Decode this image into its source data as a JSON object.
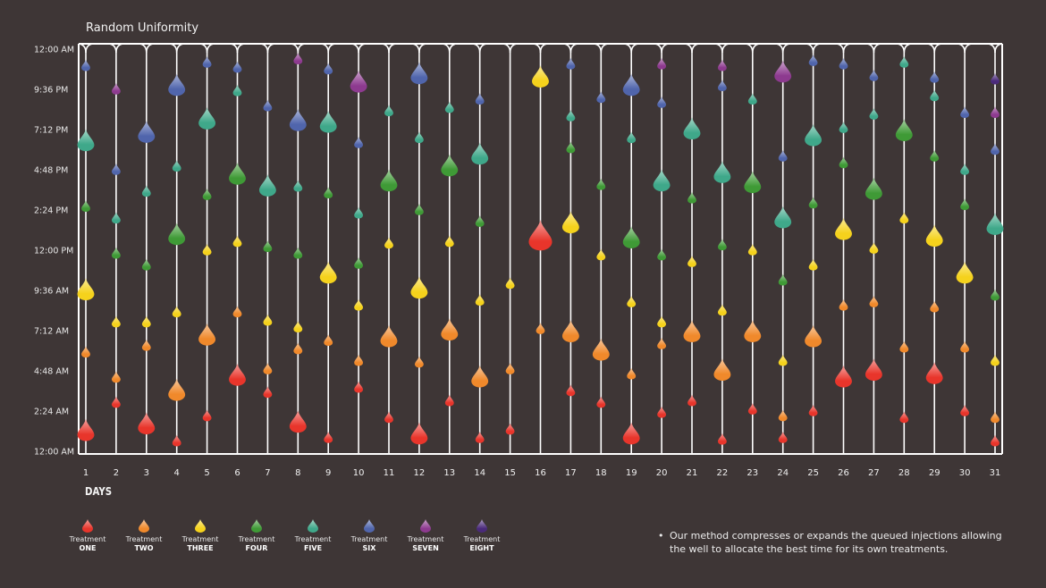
{
  "colors": {
    "background": "#3e3636",
    "frame": "#ffffff",
    "treatments": [
      "#e8352b",
      "#f0892b",
      "#f5d21c",
      "#3f9a36",
      "#3fa88a",
      "#5065ac",
      "#8d3a8f",
      "#4a2a7a"
    ]
  },
  "chart_data": {
    "type": "scatter",
    "title": "Random Uniformity",
    "xlabel": "DAYS",
    "ylabel": "",
    "x_ticks": [
      "1",
      "2",
      "3",
      "4",
      "5",
      "6",
      "7",
      "8",
      "9",
      "10",
      "11",
      "12",
      "13",
      "14",
      "15",
      "16",
      "17",
      "18",
      "19",
      "20",
      "21",
      "22",
      "23",
      "24",
      "25",
      "26",
      "27",
      "28",
      "29",
      "30",
      "31"
    ],
    "y_ticks": [
      "12:00 AM",
      "2:24 AM",
      "4:48 AM",
      "7:12 AM",
      "9:36 AM",
      "12:00 PM",
      "2:24 PM",
      "4:48 PM",
      "7:12 PM",
      "9:36 PM",
      "12:00 AM"
    ],
    "y_unit": "hours since midnight",
    "ylim": [
      0,
      24
    ],
    "size_meaning": "drop size indicates injection volume (1 = small, 3 = large)",
    "series": [
      {
        "name": "Treatment ONE",
        "points": [
          [
            1,
            1.2,
            3
          ],
          [
            2,
            2.9,
            1
          ],
          [
            3,
            1.6,
            3
          ],
          [
            4,
            0.6,
            1
          ],
          [
            5,
            2.1,
            1
          ],
          [
            6,
            4.5,
            3
          ],
          [
            7,
            3.5,
            1
          ],
          [
            8,
            1.7,
            3
          ],
          [
            9,
            0.8,
            1
          ],
          [
            10,
            3.8,
            1
          ],
          [
            11,
            2.0,
            1
          ],
          [
            12,
            1.0,
            3
          ],
          [
            13,
            3.0,
            1
          ],
          [
            14,
            0.8,
            1
          ],
          [
            15,
            1.3,
            1
          ],
          [
            16,
            12.8,
            3
          ],
          [
            17,
            3.6,
            1
          ],
          [
            18,
            2.9,
            1
          ],
          [
            19,
            1.0,
            3
          ],
          [
            20,
            2.3,
            1
          ],
          [
            21,
            3.0,
            1
          ],
          [
            22,
            0.7,
            1
          ],
          [
            23,
            2.5,
            1
          ],
          [
            24,
            0.8,
            1
          ],
          [
            25,
            2.4,
            1
          ],
          [
            26,
            4.4,
            3
          ],
          [
            27,
            4.8,
            3
          ],
          [
            28,
            2.0,
            1
          ],
          [
            29,
            4.6,
            3
          ],
          [
            30,
            2.4,
            1
          ],
          [
            31,
            0.6,
            1
          ]
        ]
      },
      {
        "name": "Treatment TWO",
        "points": [
          [
            1,
            5.9,
            1
          ],
          [
            2,
            4.4,
            1
          ],
          [
            3,
            6.3,
            1
          ],
          [
            4,
            3.6,
            3
          ],
          [
            5,
            6.9,
            3
          ],
          [
            6,
            8.3,
            1
          ],
          [
            7,
            4.9,
            1
          ],
          [
            8,
            6.1,
            1
          ],
          [
            9,
            6.6,
            1
          ],
          [
            10,
            5.4,
            1
          ],
          [
            11,
            6.8,
            3
          ],
          [
            12,
            5.3,
            1
          ],
          [
            13,
            7.2,
            3
          ],
          [
            14,
            4.4,
            3
          ],
          [
            15,
            4.9,
            1
          ],
          [
            16,
            7.3,
            1
          ],
          [
            17,
            7.1,
            3
          ],
          [
            18,
            6.0,
            3
          ],
          [
            19,
            4.6,
            1
          ],
          [
            20,
            6.4,
            1
          ],
          [
            21,
            7.1,
            3
          ],
          [
            22,
            4.8,
            3
          ],
          [
            23,
            7.1,
            3
          ],
          [
            24,
            2.1,
            1
          ],
          [
            25,
            6.8,
            3
          ],
          [
            26,
            8.7,
            1
          ],
          [
            27,
            8.9,
            1
          ],
          [
            28,
            6.2,
            1
          ],
          [
            29,
            8.6,
            1
          ],
          [
            30,
            6.2,
            1
          ],
          [
            31,
            2.0,
            1
          ]
        ]
      },
      {
        "name": "Treatment THREE",
        "points": [
          [
            1,
            9.6,
            3
          ],
          [
            2,
            7.7,
            1
          ],
          [
            3,
            7.7,
            1
          ],
          [
            4,
            8.3,
            1
          ],
          [
            5,
            12.0,
            1
          ],
          [
            6,
            12.5,
            1
          ],
          [
            7,
            7.8,
            1
          ],
          [
            8,
            7.4,
            1
          ],
          [
            9,
            10.6,
            3
          ],
          [
            10,
            8.7,
            1
          ],
          [
            11,
            12.4,
            1
          ],
          [
            12,
            9.7,
            3
          ],
          [
            13,
            12.5,
            1
          ],
          [
            14,
            9.0,
            1
          ],
          [
            15,
            10.0,
            1
          ],
          [
            16,
            22.3,
            3
          ],
          [
            17,
            13.6,
            3
          ],
          [
            18,
            11.7,
            1
          ],
          [
            19,
            8.9,
            1
          ],
          [
            20,
            7.7,
            1
          ],
          [
            21,
            11.3,
            1
          ],
          [
            22,
            8.4,
            1
          ],
          [
            23,
            12.0,
            1
          ],
          [
            24,
            5.4,
            1
          ],
          [
            25,
            11.1,
            1
          ],
          [
            26,
            13.2,
            3
          ],
          [
            27,
            12.1,
            1
          ],
          [
            28,
            13.9,
            1
          ],
          [
            29,
            12.8,
            3
          ],
          [
            30,
            10.6,
            3
          ],
          [
            31,
            5.4,
            1
          ]
        ]
      },
      {
        "name": "Treatment FOUR",
        "points": [
          [
            1,
            14.6,
            1
          ],
          [
            2,
            11.8,
            1
          ],
          [
            3,
            11.1,
            1
          ],
          [
            4,
            12.9,
            3
          ],
          [
            5,
            15.3,
            1
          ],
          [
            6,
            16.5,
            3
          ],
          [
            7,
            12.2,
            1
          ],
          [
            8,
            11.8,
            1
          ],
          [
            9,
            15.4,
            1
          ],
          [
            10,
            11.2,
            1
          ],
          [
            11,
            16.1,
            3
          ],
          [
            12,
            14.4,
            1
          ],
          [
            13,
            17.0,
            3
          ],
          [
            14,
            13.7,
            1
          ],
          [
            17,
            18.1,
            1
          ],
          [
            18,
            15.9,
            1
          ],
          [
            19,
            12.7,
            3
          ],
          [
            20,
            11.7,
            1
          ],
          [
            21,
            15.1,
            1
          ],
          [
            22,
            12.3,
            1
          ],
          [
            23,
            16.0,
            3
          ],
          [
            24,
            10.2,
            1
          ],
          [
            25,
            14.8,
            1
          ],
          [
            26,
            17.2,
            1
          ],
          [
            27,
            15.6,
            3
          ],
          [
            28,
            19.1,
            3
          ],
          [
            29,
            17.6,
            1
          ],
          [
            30,
            14.7,
            1
          ],
          [
            31,
            9.3,
            1
          ]
        ]
      },
      {
        "name": "Treatment FIVE",
        "points": [
          [
            1,
            18.5,
            3
          ],
          [
            2,
            13.9,
            1
          ],
          [
            3,
            15.5,
            1
          ],
          [
            4,
            17.0,
            1
          ],
          [
            5,
            19.8,
            3
          ],
          [
            6,
            21.5,
            1
          ],
          [
            7,
            15.8,
            3
          ],
          [
            8,
            15.8,
            1
          ],
          [
            9,
            19.6,
            3
          ],
          [
            10,
            14.2,
            1
          ],
          [
            11,
            20.3,
            1
          ],
          [
            12,
            18.7,
            1
          ],
          [
            13,
            20.5,
            1
          ],
          [
            14,
            17.7,
            3
          ],
          [
            17,
            20.0,
            1
          ],
          [
            19,
            18.7,
            1
          ],
          [
            20,
            16.1,
            3
          ],
          [
            21,
            19.2,
            3
          ],
          [
            22,
            16.6,
            3
          ],
          [
            23,
            21.0,
            1
          ],
          [
            24,
            13.9,
            3
          ],
          [
            25,
            18.8,
            3
          ],
          [
            26,
            19.3,
            1
          ],
          [
            27,
            20.1,
            1
          ],
          [
            28,
            23.2,
            1
          ],
          [
            29,
            21.2,
            1
          ],
          [
            30,
            16.8,
            1
          ],
          [
            31,
            13.5,
            3
          ]
        ]
      },
      {
        "name": "Treatment SIX",
        "points": [
          [
            1,
            23.0,
            1
          ],
          [
            2,
            16.8,
            1
          ],
          [
            3,
            19.0,
            3
          ],
          [
            4,
            21.8,
            3
          ],
          [
            5,
            23.2,
            1
          ],
          [
            6,
            22.9,
            1
          ],
          [
            7,
            20.6,
            1
          ],
          [
            8,
            19.7,
            3
          ],
          [
            9,
            22.8,
            1
          ],
          [
            10,
            18.4,
            1
          ],
          [
            12,
            22.5,
            3
          ],
          [
            14,
            21.0,
            1
          ],
          [
            17,
            23.1,
            1
          ],
          [
            18,
            21.1,
            1
          ],
          [
            19,
            21.8,
            3
          ],
          [
            20,
            20.8,
            1
          ],
          [
            22,
            21.8,
            1
          ],
          [
            24,
            17.6,
            1
          ],
          [
            25,
            23.3,
            1
          ],
          [
            26,
            23.1,
            1
          ],
          [
            27,
            22.4,
            1
          ],
          [
            29,
            22.3,
            1
          ],
          [
            30,
            20.2,
            1
          ],
          [
            31,
            18.0,
            1
          ]
        ]
      },
      {
        "name": "Treatment SEVEN",
        "points": [
          [
            2,
            21.6,
            1
          ],
          [
            8,
            23.4,
            1
          ],
          [
            10,
            22.0,
            3
          ],
          [
            20,
            23.1,
            1
          ],
          [
            22,
            23.0,
            1
          ],
          [
            24,
            22.6,
            3
          ],
          [
            31,
            20.2,
            1
          ]
        ]
      },
      {
        "name": "Treatment EIGHT",
        "points": [
          [
            31,
            22.2,
            1
          ]
        ]
      }
    ]
  },
  "legend": [
    {
      "line1": "Treatment",
      "line2": "ONE"
    },
    {
      "line1": "Treatment",
      "line2": "TWO"
    },
    {
      "line1": "Treatment",
      "line2": "THREE"
    },
    {
      "line1": "Treatment",
      "line2": "FOUR"
    },
    {
      "line1": "Treatment",
      "line2": "FIVE"
    },
    {
      "line1": "Treatment",
      "line2": "SIX"
    },
    {
      "line1": "Treatment",
      "line2": "SEVEN"
    },
    {
      "line1": "Treatment",
      "line2": "EIGHT"
    }
  ],
  "note": {
    "bullet": "•",
    "text": "Our method compresses or expands the queued injections allowing the well to allocate the best time for its own treatments."
  }
}
